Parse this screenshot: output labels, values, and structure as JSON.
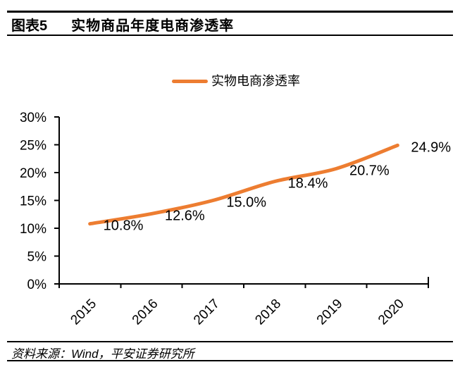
{
  "header": {
    "figure_label": "图表5",
    "title": "实物商品年度电商渗透率"
  },
  "legend": {
    "series_label": "实物电商渗透率"
  },
  "footer": {
    "source": "资料来源：Wind，平安证券研究所"
  },
  "colors": {
    "line": "#ED7D31",
    "axis": "#000000",
    "text": "#000000"
  },
  "chart_data": {
    "type": "line",
    "title": "实物商品年度电商渗透率",
    "categories": [
      "2015",
      "2016",
      "2017",
      "2018",
      "2019",
      "2020"
    ],
    "series": [
      {
        "name": "实物电商渗透率",
        "values": [
          10.8,
          12.6,
          15.0,
          18.4,
          20.7,
          24.9
        ]
      }
    ],
    "data_labels": [
      "10.8%",
      "12.6%",
      "15.0%",
      "18.4%",
      "20.7%",
      "24.9%"
    ],
    "xlabel": "",
    "ylabel": "",
    "ylim": [
      0,
      30
    ],
    "y_tick_values": [
      0,
      5,
      10,
      15,
      20,
      25,
      30
    ],
    "y_ticks": [
      "0%",
      "5%",
      "10%",
      "15%",
      "20%",
      "25%",
      "30%"
    ],
    "grid": false,
    "legend_position": "top",
    "smoothed": true
  }
}
